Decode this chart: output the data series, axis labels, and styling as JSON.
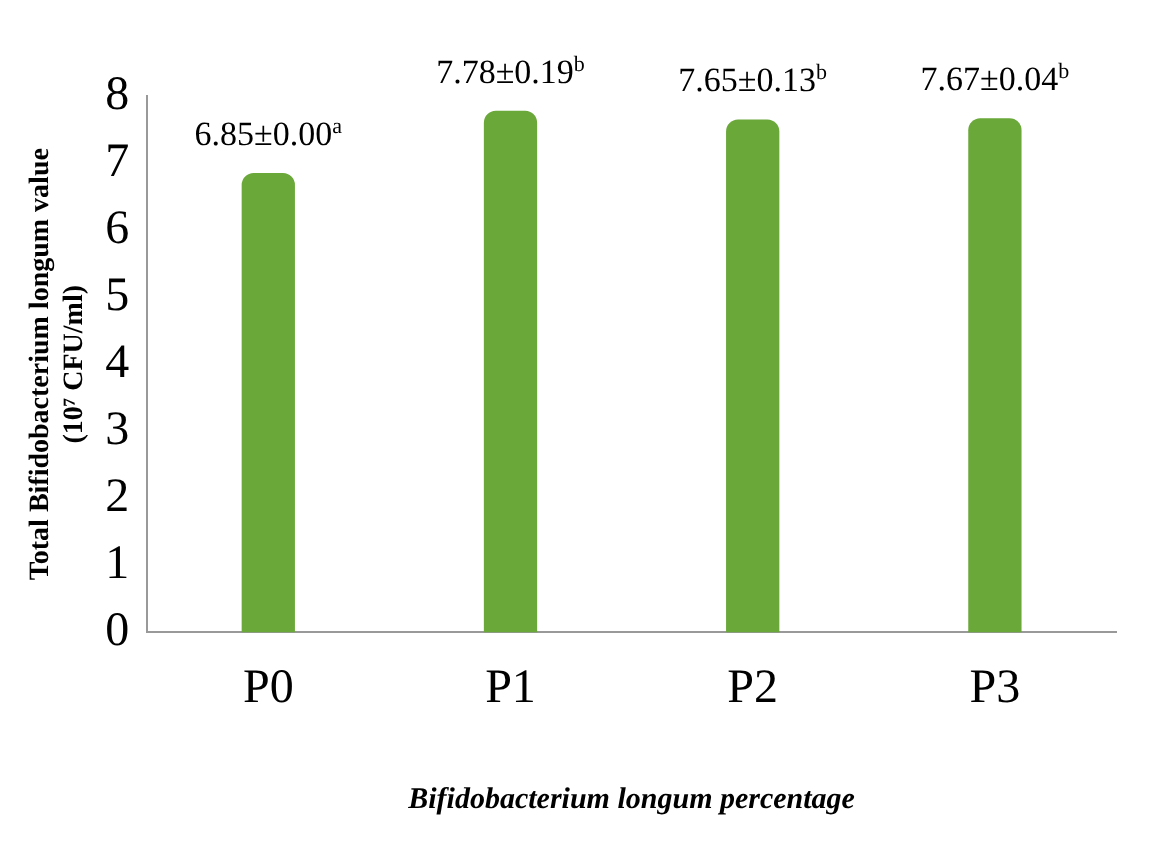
{
  "chart_data": {
    "type": "bar",
    "categories": [
      "P0",
      "P1",
      "P2",
      "P3"
    ],
    "values": [
      6.85,
      7.78,
      7.65,
      7.67
    ],
    "value_labels": [
      "6.85±0.00$^{a}$",
      "7.78±0.19$^{b}$",
      "7.65±0.13$^{b}$",
      "7.67±0.04$^{b}$"
    ],
    "color": "#6aa83a",
    "xlabel": "Bifidobacterium longum percentage",
    "ylabel": "Total Bifidobacterium longum value (10⁷ CFU/ml)",
    "ylim": [
      0,
      8
    ],
    "yticks": [
      0,
      1,
      2,
      3,
      4,
      5,
      6,
      7,
      8
    ],
    "grid": false,
    "legend": false
  }
}
